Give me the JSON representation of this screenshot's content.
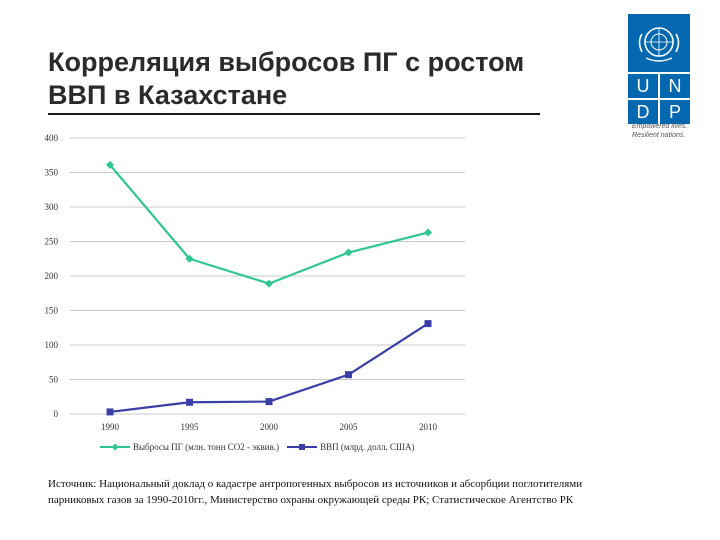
{
  "slide": {
    "title_line1": "Корреляция выбросов ПГ с ростом",
    "title_line2": "ВВП в Казахстане",
    "source_line1": "Источник: Национальный доклад о кадастре антропогенных выбросов из источников и абсорбции поглотителями",
    "source_line2": "парниковых газов за 1990-2010гг., Министерство охраны окружающей среды РК; Статистическое Агентство РК"
  },
  "logo": {
    "letters": [
      "U",
      "N",
      "D",
      "P"
    ],
    "tagline_line1": "Empowered lives.",
    "tagline_line2": "Resilient nations.",
    "color": "#0468b1"
  },
  "chart_data": {
    "type": "line",
    "title": "",
    "xlabel": "",
    "ylabel": "",
    "categories": [
      "1990",
      "1995",
      "2000",
      "2005",
      "2010"
    ],
    "yticks": [
      "0",
      "50",
      "100",
      "150",
      "200",
      "250",
      "300",
      "350",
      "400"
    ],
    "ylim": [
      0,
      400
    ],
    "grid": true,
    "legend_position": "bottom",
    "series": [
      {
        "name": "Выбросы ПГ (млн. тонн СО2 - эквив.)",
        "values": [
          361,
          225,
          189,
          234,
          263
        ],
        "color": "#2ec78f",
        "marker": "diamond"
      },
      {
        "name": "ВВП (млрд. долл. США)",
        "values": [
          3,
          17,
          18,
          57,
          131
        ],
        "color": "#3a3fa8",
        "marker": "square"
      }
    ]
  }
}
